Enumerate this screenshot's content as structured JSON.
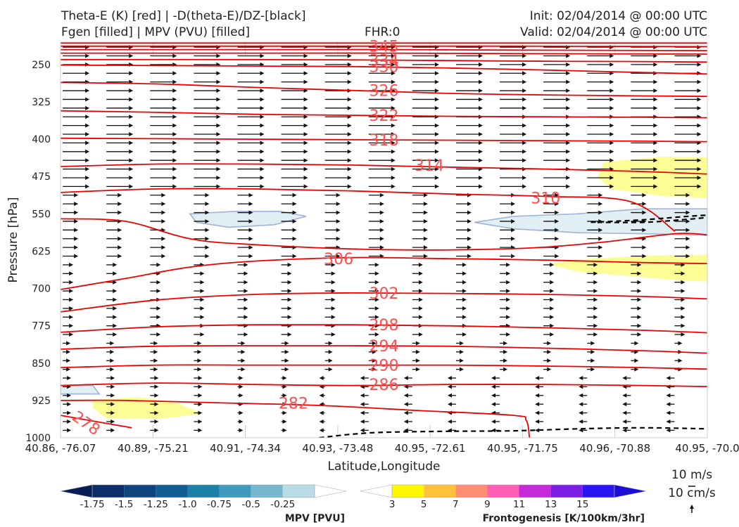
{
  "header": {
    "title_line1": "Theta-E (K) [red] | -D(theta-E)/DZ-[black]",
    "title_line2": "Fgen [filled] | MPV (PVU) [filled]",
    "fhr": "FHR:0",
    "init": "Init: 02/04/2014 @ 00:00 UTC",
    "valid": "Valid: 02/04/2014 @ 00:00 UTC"
  },
  "chart_data": {
    "type": "cross-section",
    "xlabel": "Latitude,Longitude",
    "ylabel": "Pressure [hPa]",
    "x_ticks": [
      "40.86, -76.07",
      "40.89, -75.21",
      "40.91, -74.34",
      "40.93, -73.48",
      "40.95, -72.61",
      "40.95, -71.75",
      "40.96, -70.88",
      "40.95, -70.0"
    ],
    "y_ticks": [
      250,
      325,
      400,
      475,
      550,
      625,
      700,
      775,
      850,
      925,
      1000
    ],
    "ylim": [
      1000,
      205
    ],
    "y_scale": "linear, inverted",
    "theta_e_contours": [
      {
        "label": "278",
        "pts": [
          [
            0.0,
            955
          ],
          [
            0.11,
            980
          ]
        ]
      },
      {
        "label": "282",
        "pts": [
          [
            0.0,
            925
          ],
          [
            0.1,
            925
          ],
          [
            0.25,
            930
          ],
          [
            0.4,
            935
          ],
          [
            0.55,
            945
          ],
          [
            0.7,
            955
          ],
          [
            0.72,
            965
          ],
          [
            0.725,
            1000
          ]
        ]
      },
      {
        "label": "286",
        "pts": [
          [
            0.0,
            895
          ],
          [
            0.15,
            890
          ],
          [
            0.3,
            893
          ],
          [
            0.45,
            895
          ],
          [
            0.6,
            893
          ],
          [
            0.75,
            893
          ],
          [
            0.9,
            895
          ],
          [
            1.0,
            897
          ]
        ]
      },
      {
        "label": "290",
        "pts": [
          [
            0.0,
            859
          ],
          [
            0.15,
            854
          ],
          [
            0.3,
            854
          ],
          [
            0.45,
            854
          ],
          [
            0.6,
            854
          ],
          [
            0.75,
            856
          ],
          [
            0.9,
            859
          ],
          [
            1.0,
            862
          ]
        ]
      },
      {
        "label": "294",
        "pts": [
          [
            0.0,
            822
          ],
          [
            0.15,
            816
          ],
          [
            0.3,
            815
          ],
          [
            0.45,
            815
          ],
          [
            0.6,
            816
          ],
          [
            0.75,
            820
          ],
          [
            0.9,
            825
          ],
          [
            1.0,
            830
          ]
        ]
      },
      {
        "label": "298",
        "pts": [
          [
            0.0,
            788
          ],
          [
            0.15,
            777
          ],
          [
            0.3,
            773
          ],
          [
            0.45,
            773
          ],
          [
            0.6,
            775
          ],
          [
            0.75,
            779
          ],
          [
            0.9,
            784
          ],
          [
            1.0,
            789
          ]
        ]
      },
      {
        "label": "302",
        "pts": [
          [
            0.0,
            747
          ],
          [
            0.15,
            723
          ],
          [
            0.3,
            712
          ],
          [
            0.45,
            709
          ],
          [
            0.6,
            710
          ],
          [
            0.75,
            712
          ],
          [
            0.9,
            716
          ],
          [
            1.0,
            721
          ]
        ]
      },
      {
        "label": "306",
        "pts": [
          [
            0.0,
            702
          ],
          [
            0.1,
            680
          ],
          [
            0.2,
            657
          ],
          [
            0.3,
            645
          ],
          [
            0.45,
            638
          ],
          [
            0.6,
            640
          ],
          [
            0.75,
            643
          ],
          [
            0.9,
            648
          ],
          [
            1.0,
            650
          ]
        ]
      },
      {
        "label": "310",
        "pts": [
          [
            0.0,
            560
          ],
          [
            0.1,
            565
          ],
          [
            0.2,
            600
          ],
          [
            0.3,
            612
          ],
          [
            0.5,
            622
          ],
          [
            0.7,
            620
          ],
          [
            0.83,
            608
          ],
          [
            0.95,
            590
          ],
          [
            1.0,
            592
          ]
        ]
      },
      {
        "label": "",
        "pts": [
          [
            0.0,
            507
          ],
          [
            0.15,
            500
          ],
          [
            0.3,
            500
          ],
          [
            0.45,
            504
          ],
          [
            0.6,
            510
          ],
          [
            0.75,
            515
          ],
          [
            0.88,
            525
          ],
          [
            0.95,
            585
          ]
        ]
      },
      {
        "label": "314",
        "pts": [
          [
            0.0,
            455
          ],
          [
            0.15,
            450
          ],
          [
            0.3,
            450
          ],
          [
            0.45,
            452
          ],
          [
            0.6,
            456
          ],
          [
            0.75,
            460
          ],
          [
            0.9,
            465
          ],
          [
            1.0,
            470
          ]
        ]
      },
      {
        "label": "318",
        "pts": [
          [
            0.0,
            398
          ],
          [
            0.15,
            399
          ],
          [
            0.3,
            400
          ],
          [
            0.45,
            401
          ],
          [
            0.6,
            402
          ],
          [
            0.75,
            403
          ],
          [
            0.9,
            404
          ],
          [
            1.0,
            405
          ]
        ]
      },
      {
        "label": "322",
        "pts": [
          [
            0.0,
            343
          ],
          [
            0.15,
            346
          ],
          [
            0.3,
            350
          ],
          [
            0.45,
            352
          ],
          [
            0.6,
            354
          ],
          [
            0.75,
            355
          ],
          [
            0.9,
            356
          ],
          [
            1.0,
            357
          ]
        ]
      },
      {
        "label": "326",
        "pts": [
          [
            0.0,
            286
          ],
          [
            0.15,
            289
          ],
          [
            0.3,
            296
          ],
          [
            0.45,
            302
          ],
          [
            0.6,
            308
          ],
          [
            0.75,
            311
          ],
          [
            0.9,
            313
          ],
          [
            1.0,
            314
          ]
        ]
      },
      {
        "label": "330",
        "pts": [
          [
            0.0,
            251
          ],
          [
            0.15,
            252
          ],
          [
            0.3,
            253
          ],
          [
            0.45,
            254
          ],
          [
            0.6,
            257
          ],
          [
            0.75,
            261
          ],
          [
            0.9,
            266
          ],
          [
            1.0,
            269
          ]
        ]
      },
      {
        "label": "334",
        "pts": [
          [
            0.0,
            240
          ],
          [
            0.3,
            240
          ],
          [
            0.5,
            241
          ],
          [
            0.7,
            243
          ],
          [
            0.9,
            244
          ],
          [
            1.0,
            245
          ]
        ]
      },
      {
        "label": "",
        "pts": [
          [
            0.0,
            227
          ],
          [
            0.3,
            227
          ],
          [
            0.5,
            227
          ],
          [
            0.7,
            228
          ],
          [
            1.0,
            229
          ]
        ]
      },
      {
        "label": "",
        "pts": [
          [
            0.0,
            220
          ],
          [
            0.3,
            220
          ],
          [
            0.5,
            220
          ],
          [
            0.7,
            221
          ],
          [
            1.0,
            222
          ]
        ]
      },
      {
        "label": "345",
        "pts": [
          [
            0.0,
            213
          ],
          [
            0.3,
            213
          ],
          [
            0.5,
            213
          ],
          [
            0.7,
            213
          ],
          [
            1.0,
            214
          ]
        ]
      },
      {
        "label": "",
        "pts": [
          [
            0.0,
            207
          ],
          [
            0.5,
            207
          ],
          [
            1.0,
            207
          ]
        ]
      }
    ],
    "dashed_contours": [
      {
        "pts": [
          [
            0.82,
            567
          ],
          [
            0.9,
            562
          ],
          [
            0.97,
            555
          ],
          [
            1.0,
            553
          ],
          [
            1.0,
            557
          ],
          [
            0.96,
            562
          ],
          [
            0.9,
            567
          ],
          [
            0.82,
            567
          ]
        ]
      },
      {
        "pts": [
          [
            0.4,
            1000
          ],
          [
            0.45,
            993
          ],
          [
            0.5,
            989
          ],
          [
            0.6,
            987
          ],
          [
            0.7,
            986
          ],
          [
            0.8,
            982
          ],
          [
            0.9,
            980
          ],
          [
            1.0,
            982
          ]
        ]
      }
    ],
    "fgen_regions": [
      {
        "level": 3,
        "pts": [
          [
            0.05,
            924
          ],
          [
            0.12,
            918
          ],
          [
            0.18,
            930
          ],
          [
            0.22,
            952
          ],
          [
            0.15,
            962
          ],
          [
            0.07,
            960
          ],
          [
            0.05,
            940
          ]
        ]
      },
      {
        "level": 3,
        "pts": [
          [
            0.84,
            446
          ],
          [
            0.93,
            435
          ],
          [
            1.0,
            437
          ],
          [
            1.0,
            518
          ],
          [
            0.93,
            514
          ],
          [
            0.85,
            500
          ],
          [
            0.83,
            475
          ]
        ]
      },
      {
        "level": 3,
        "pts": [
          [
            0.75,
            650
          ],
          [
            0.82,
            640
          ],
          [
            0.9,
            634
          ],
          [
            1.0,
            632
          ],
          [
            1.0,
            686
          ],
          [
            0.95,
            683
          ],
          [
            0.87,
            674
          ],
          [
            0.8,
            666
          ]
        ]
      }
    ],
    "mpv_regions": [
      {
        "level": -0.25,
        "pts": [
          [
            0.2,
            550
          ],
          [
            0.27,
            545
          ],
          [
            0.34,
            545
          ],
          [
            0.38,
            555
          ],
          [
            0.33,
            572
          ],
          [
            0.26,
            577
          ],
          [
            0.21,
            567
          ]
        ]
      },
      {
        "level": -0.25,
        "pts": [
          [
            0.64,
            567
          ],
          [
            0.7,
            555
          ],
          [
            0.8,
            550
          ],
          [
            0.9,
            540
          ],
          [
            1.0,
            540
          ],
          [
            1.0,
            593
          ],
          [
            0.9,
            590
          ],
          [
            0.8,
            588
          ],
          [
            0.7,
            580
          ]
        ]
      },
      {
        "level": -0.25,
        "pts": [
          [
            0.0,
            895
          ],
          [
            0.05,
            895
          ],
          [
            0.06,
            912
          ],
          [
            0.0,
            912
          ]
        ]
      }
    ],
    "colorbar_mpv": {
      "label": "MPV [PVU]",
      "ticks": [
        "-1.75",
        "-1.5",
        "-1.25",
        "-1.0",
        "-0.75",
        "-0.5",
        "-0.25"
      ],
      "colors": [
        "#081d58",
        "#0c2c6a",
        "#0f457f",
        "#125d91",
        "#1b80a8",
        "#3e9bbd",
        "#78b8cf",
        "#b9dbe6",
        "#ffffff"
      ]
    },
    "colorbar_fgen": {
      "label": "Frontogenesis [K/100km/3hr]",
      "ticks": [
        "3",
        "5",
        "7",
        "9",
        "11",
        "13",
        "15"
      ],
      "colors": [
        "#ffffff",
        "#fff700",
        "#ffc13a",
        "#ff8d72",
        "#ff5eb4",
        "#c529d8",
        "#7a1ee6",
        "#2a16f5",
        "#1b0cd6"
      ]
    },
    "vector_key": {
      "horizontal": "10 m/s",
      "vertical": "10 cm/s"
    }
  }
}
